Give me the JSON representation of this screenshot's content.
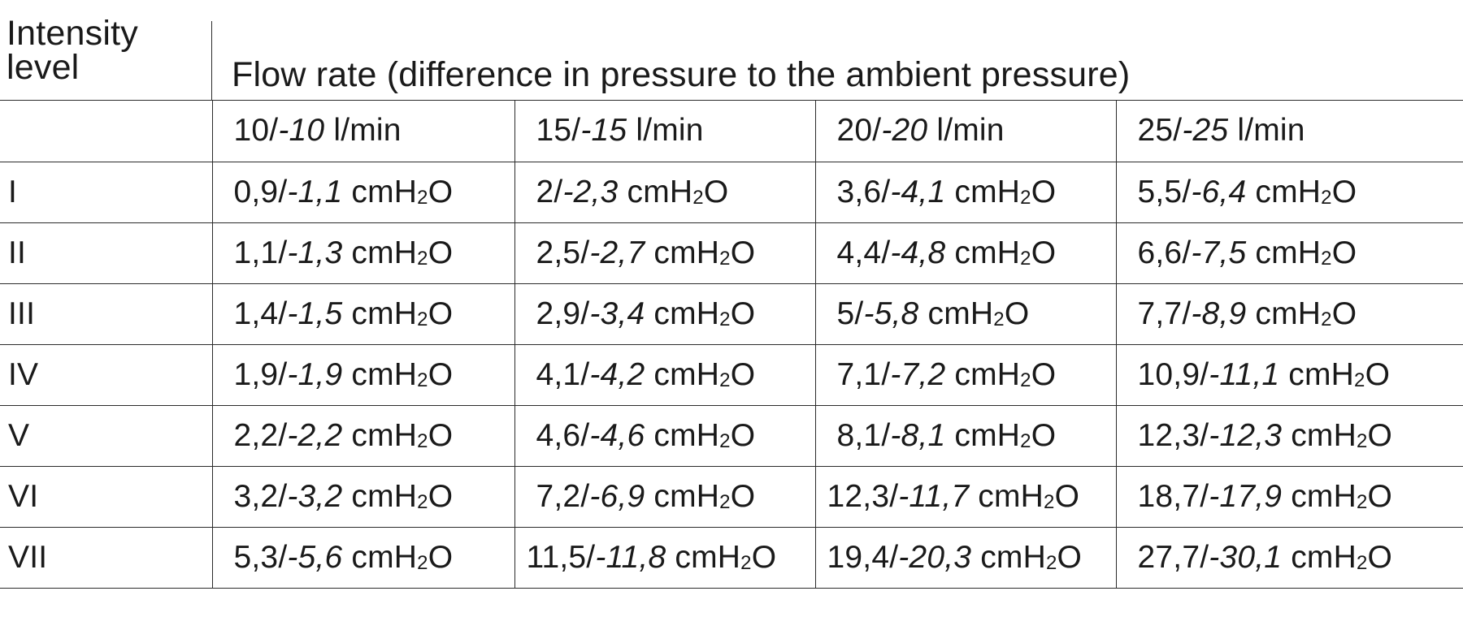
{
  "header": {
    "intensity_line1": "Intensity",
    "intensity_line2": "level",
    "flow_rate": "Flow rate (difference in pressure to the ambient pressure)"
  },
  "columns": [
    {
      "pos": "10/",
      "neg": "-10",
      "unit": " l/min"
    },
    {
      "pos": "15/",
      "neg": "-15",
      "unit": " l/min"
    },
    {
      "pos": "20/",
      "neg": "-20",
      "unit": " l/min"
    },
    {
      "pos": "25/",
      "neg": "-25",
      "unit": " l/min"
    }
  ],
  "pressure_unit": {
    "prefix": " cmH",
    "sub": "2",
    "suffix": "O"
  },
  "rows": [
    {
      "level": "I",
      "cells": [
        {
          "pos": "0,9/",
          "neg": "-1,1"
        },
        {
          "pos": "2/",
          "neg": "-2,3"
        },
        {
          "pos": "3,6/",
          "neg": "-4,1"
        },
        {
          "pos": "5,5/",
          "neg": "-6,4"
        }
      ]
    },
    {
      "level": "II",
      "cells": [
        {
          "pos": "1,1/",
          "neg": "-1,3"
        },
        {
          "pos": "2,5/",
          "neg": "-2,7"
        },
        {
          "pos": "4,4/",
          "neg": "-4,8"
        },
        {
          "pos": "6,6/",
          "neg": "-7,5"
        }
      ]
    },
    {
      "level": "III",
      "cells": [
        {
          "pos": "1,4/",
          "neg": "-1,5"
        },
        {
          "pos": "2,9/",
          "neg": "-3,4"
        },
        {
          "pos": "5/",
          "neg": "-5,8"
        },
        {
          "pos": "7,7/",
          "neg": "-8,9"
        }
      ]
    },
    {
      "level": "IV",
      "cells": [
        {
          "pos": "1,9/",
          "neg": "-1,9"
        },
        {
          "pos": "4,1/",
          "neg": "-4,2"
        },
        {
          "pos": "7,1/",
          "neg": "-7,2"
        },
        {
          "pos": "10,9/",
          "neg": "-11,1"
        }
      ]
    },
    {
      "level": "V",
      "cells": [
        {
          "pos": "2,2/",
          "neg": "-2,2"
        },
        {
          "pos": "4,6/",
          "neg": "-4,6"
        },
        {
          "pos": "8,1/",
          "neg": "-8,1"
        },
        {
          "pos": "12,3/",
          "neg": "-12,3"
        }
      ]
    },
    {
      "level": "VI",
      "cells": [
        {
          "pos": "3,2/",
          "neg": "-3,2"
        },
        {
          "pos": "7,2/",
          "neg": "-6,9"
        },
        {
          "pos": "12,3/",
          "neg": "-11,7"
        },
        {
          "pos": "18,7/",
          "neg": "-17,9"
        }
      ]
    },
    {
      "level": "VII",
      "cells": [
        {
          "pos": "5,3/",
          "neg": "-5,6"
        },
        {
          "pos": "11,5/",
          "neg": "-11,8"
        },
        {
          "pos": "19,4/",
          "neg": "-20,3"
        },
        {
          "pos": "27,7/",
          "neg": "-30,1"
        }
      ]
    }
  ]
}
